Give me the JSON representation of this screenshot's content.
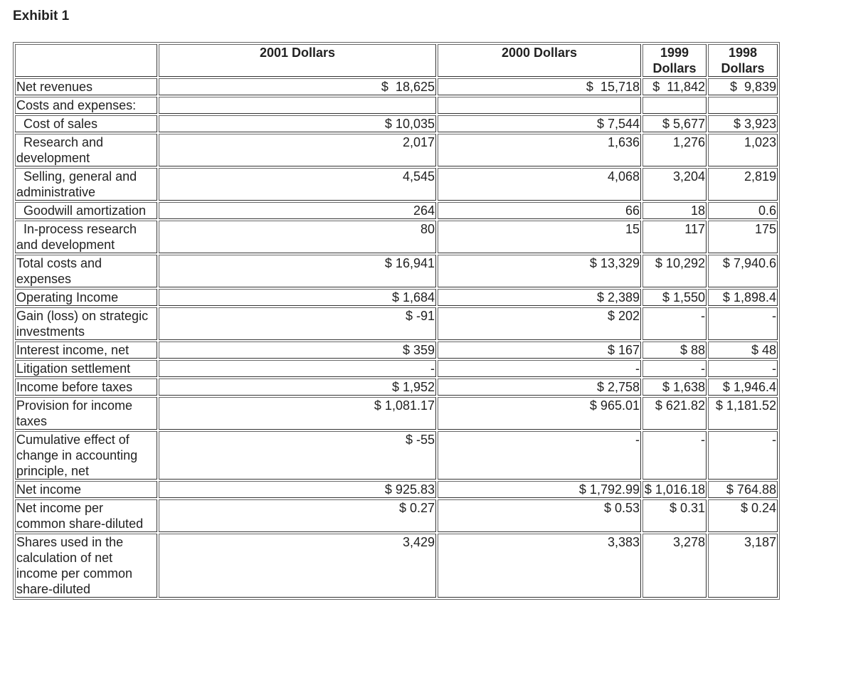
{
  "title": "Exhibit 1",
  "columns": [
    "",
    "2001 Dollars",
    "2000 Dollars",
    "1999 Dollars",
    "1998 Dollars"
  ],
  "rows": [
    {
      "label": "Net revenues",
      "indent": false,
      "values": [
        "$  18,625",
        "$  15,718",
        "$  11,842",
        "$  9,839"
      ]
    },
    {
      "label": "Costs and expenses:",
      "indent": false,
      "values": [
        "",
        "",
        "",
        ""
      ]
    },
    {
      "label": "Cost of sales",
      "indent": true,
      "values": [
        "$ 10,035",
        "$ 7,544",
        "$ 5,677",
        "$ 3,923"
      ]
    },
    {
      "label": "Research and development",
      "indent": true,
      "values": [
        "2,017",
        "1,636",
        "1,276",
        "1,023"
      ]
    },
    {
      "label": "Selling, general and administrative",
      "indent": true,
      "values": [
        "4,545",
        "4,068",
        "3,204",
        "2,819"
      ]
    },
    {
      "label": "Goodwill amortization",
      "indent": true,
      "values": [
        "264",
        "66",
        "18",
        "0.6"
      ]
    },
    {
      "label": "In-process research and development",
      "indent": true,
      "values": [
        "80",
        "15",
        "117",
        "175"
      ]
    },
    {
      "label": "Total costs and expenses",
      "indent": false,
      "values": [
        "$ 16,941",
        "$ 13,329",
        "$ 10,292",
        "$ 7,940.6"
      ]
    },
    {
      "label": "Operating Income",
      "indent": false,
      "values": [
        "$ 1,684",
        "$ 2,389",
        "$ 1,550",
        "$ 1,898.4"
      ]
    },
    {
      "label": "Gain (loss) on strategic investments",
      "indent": false,
      "values": [
        "$ -91",
        "$ 202",
        "-",
        "-"
      ]
    },
    {
      "label": "Interest income, net",
      "indent": false,
      "values": [
        "$ 359",
        "$ 167",
        "$ 88",
        "$ 48"
      ]
    },
    {
      "label": "Litigation settlement",
      "indent": false,
      "values": [
        "-",
        "-",
        "-",
        "-"
      ]
    },
    {
      "label": "Income before taxes",
      "indent": false,
      "values": [
        "$ 1,952",
        "$ 2,758",
        "$ 1,638",
        "$ 1,946.4"
      ]
    },
    {
      "label": "Provision for income taxes",
      "indent": false,
      "values": [
        "$ 1,081.17",
        "$ 965.01",
        "$ 621.82",
        "$ 1,181.52"
      ]
    },
    {
      "label": "Cumulative effect of change in accounting principle, net",
      "indent": false,
      "values": [
        "$ -55",
        "-",
        "-",
        "-"
      ]
    },
    {
      "label": "Net income",
      "indent": false,
      "values": [
        "$ 925.83",
        "$ 1,792.99",
        "$ 1,016.18",
        "$ 764.88"
      ]
    },
    {
      "label": "Net income per common share-diluted",
      "indent": false,
      "values": [
        "$ 0.27",
        "$ 0.53",
        "$ 0.31",
        "$ 0.24"
      ]
    },
    {
      "label": "Shares used in the calculation of net income per common share-diluted",
      "indent": false,
      "values": [
        "3,429",
        "3,383",
        "3,278",
        "3,187"
      ]
    }
  ]
}
